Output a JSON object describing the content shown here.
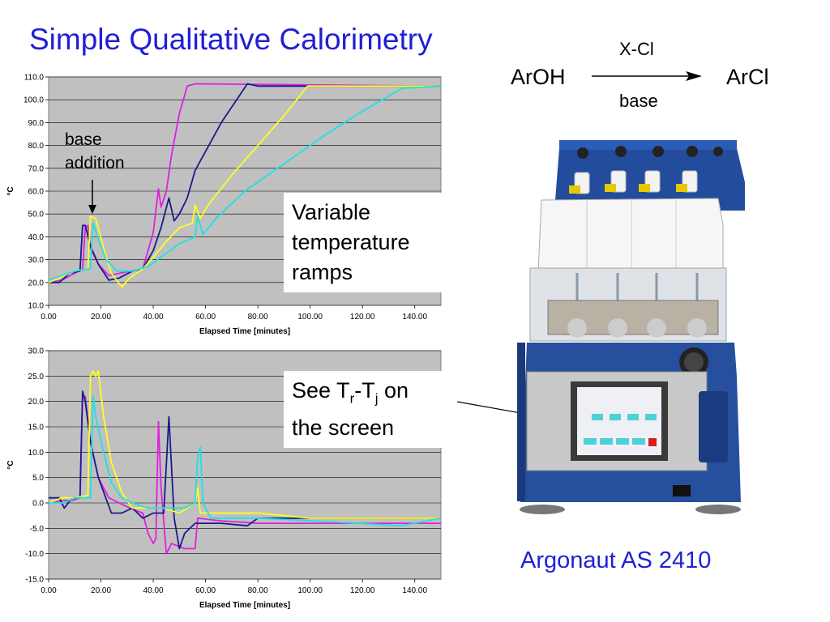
{
  "title": "Simple Qualitative Calorimetry",
  "reaction": {
    "reactant": "ArOH",
    "product": "ArCl",
    "reagent_above": "X-Cl",
    "reagent_below": "base"
  },
  "annotations": {
    "base_addition_line1": "base",
    "base_addition_line2": "addition",
    "ramps_line1": "Variable",
    "ramps_line2": "temperature",
    "ramps_line3": "ramps",
    "screen_prefix": "See T",
    "screen_sub1": "r",
    "screen_mid": "-T",
    "screen_sub2": "j",
    "screen_suffix": " on",
    "screen_line2": "the screen"
  },
  "caption": "Argonaut AS 2410",
  "colors": {
    "title": "#1f1fd6",
    "plot_bg": "#c0c0c0",
    "magenta": "#e020e0",
    "navy": "#1a1a8c",
    "yellow": "#ffff20",
    "cyan": "#20e0e0"
  },
  "chart_data": [
    {
      "type": "line",
      "xlabel": "Elapsed Time [minutes]",
      "ylabel": "°C",
      "xlim": [
        0,
        150
      ],
      "ylim": [
        10,
        110
      ],
      "x_ticks": [
        "0.00",
        "20.00",
        "40.00",
        "60.00",
        "80.00",
        "100.00",
        "120.00",
        "140.00"
      ],
      "y_ticks": [
        "10.0",
        "20.0",
        "30.0",
        "40.0",
        "50.0",
        "60.0",
        "70.0",
        "80.0",
        "90.0",
        "100.0",
        "110.0"
      ],
      "grid": true,
      "series": [
        {
          "color": "magenta",
          "points": [
            [
              0,
              20
            ],
            [
              5,
              21
            ],
            [
              10,
              24
            ],
            [
              13,
              26
            ],
            [
              14,
              44
            ],
            [
              15,
              45
            ],
            [
              16,
              35
            ],
            [
              19,
              28
            ],
            [
              23,
              23
            ],
            [
              27,
              24
            ],
            [
              31,
              25
            ],
            [
              36,
              26
            ],
            [
              40,
              42
            ],
            [
              42,
              61
            ],
            [
              43,
              53
            ],
            [
              45,
              60
            ],
            [
              47,
              76
            ],
            [
              50,
              94
            ],
            [
              53,
              106
            ],
            [
              56,
              107
            ],
            [
              150,
              106
            ]
          ]
        },
        {
          "color": "navy",
          "points": [
            [
              0,
              20
            ],
            [
              4,
              20
            ],
            [
              8,
              24
            ],
            [
              12,
              25
            ],
            [
              13,
              45
            ],
            [
              14,
              45
            ],
            [
              16,
              36
            ],
            [
              19,
              28
            ],
            [
              23,
              21
            ],
            [
              27,
              22
            ],
            [
              32,
              25
            ],
            [
              36,
              26
            ],
            [
              40,
              34
            ],
            [
              43,
              44
            ],
            [
              46,
              57
            ],
            [
              48,
              47
            ],
            [
              50,
              50
            ],
            [
              53,
              57
            ],
            [
              56,
              69
            ],
            [
              66,
              90
            ],
            [
              76,
              107
            ],
            [
              80,
              106
            ],
            [
              150,
              106
            ]
          ]
        },
        {
          "color": "yellow",
          "points": [
            [
              0,
              20
            ],
            [
              4,
              22
            ],
            [
              10,
              25
            ],
            [
              15,
              26
            ],
            [
              16,
              49
            ],
            [
              18,
              48
            ],
            [
              21,
              35
            ],
            [
              24,
              24
            ],
            [
              28,
              18
            ],
            [
              31,
              22
            ],
            [
              36,
              26
            ],
            [
              40,
              31
            ],
            [
              45,
              38
            ],
            [
              50,
              44
            ],
            [
              55,
              46
            ],
            [
              56,
              54
            ],
            [
              58,
              48
            ],
            [
              61,
              54
            ],
            [
              70,
              67
            ],
            [
              80,
              80
            ],
            [
              90,
              93
            ],
            [
              99,
              106
            ],
            [
              150,
              106
            ]
          ]
        },
        {
          "color": "cyan",
          "points": [
            [
              0,
              21
            ],
            [
              5,
              23
            ],
            [
              10,
              25
            ],
            [
              16,
              26
            ],
            [
              17,
              46
            ],
            [
              19,
              39
            ],
            [
              22,
              30
            ],
            [
              26,
              25
            ],
            [
              32,
              25
            ],
            [
              38,
              27
            ],
            [
              44,
              32
            ],
            [
              50,
              37
            ],
            [
              56,
              40
            ],
            [
              57,
              49
            ],
            [
              59,
              41
            ],
            [
              64,
              48
            ],
            [
              75,
              60
            ],
            [
              90,
              72
            ],
            [
              105,
              84
            ],
            [
              120,
              95
            ],
            [
              135,
              105
            ],
            [
              150,
              106
            ]
          ]
        }
      ]
    },
    {
      "type": "line",
      "xlabel": "Elapsed Time [minutes]",
      "ylabel": "°C",
      "xlim": [
        0,
        150
      ],
      "ylim": [
        -15,
        30
      ],
      "x_ticks": [
        "0.00",
        "20.00",
        "40.00",
        "60.00",
        "80.00",
        "100.00",
        "120.00",
        "140.00"
      ],
      "y_ticks": [
        "-15.0",
        "-10.0",
        "-5.0",
        "0.0",
        "5.0",
        "10.0",
        "15.0",
        "20.0",
        "25.0",
        "30.0"
      ],
      "grid": true,
      "series": [
        {
          "color": "magenta",
          "points": [
            [
              0,
              0
            ],
            [
              6,
              0.5
            ],
            [
              9,
              0.5
            ],
            [
              12,
              1
            ],
            [
              13,
              21
            ],
            [
              14,
              21
            ],
            [
              16,
              12
            ],
            [
              19,
              5
            ],
            [
              23,
              1
            ],
            [
              27,
              0
            ],
            [
              31,
              -1
            ],
            [
              36,
              -2
            ],
            [
              38,
              -6
            ],
            [
              40,
              -8
            ],
            [
              41,
              -7
            ],
            [
              42,
              16
            ],
            [
              43,
              3
            ],
            [
              45,
              -10
            ],
            [
              47,
              -8
            ],
            [
              52,
              -9
            ],
            [
              56,
              -9
            ],
            [
              57,
              -3
            ],
            [
              65,
              -3.5
            ],
            [
              80,
              -4
            ],
            [
              100,
              -4
            ],
            [
              150,
              -4
            ]
          ]
        },
        {
          "color": "navy",
          "points": [
            [
              0,
              1
            ],
            [
              4,
              1
            ],
            [
              6,
              -1
            ],
            [
              9,
              1
            ],
            [
              12,
              1
            ],
            [
              13,
              22
            ],
            [
              14,
              20
            ],
            [
              16,
              12
            ],
            [
              19,
              5
            ],
            [
              24,
              -2
            ],
            [
              28,
              -2
            ],
            [
              32,
              -1
            ],
            [
              36,
              -3
            ],
            [
              40,
              -2
            ],
            [
              44,
              -2
            ],
            [
              46,
              17
            ],
            [
              48,
              -3
            ],
            [
              50,
              -9
            ],
            [
              52,
              -6
            ],
            [
              56,
              -4
            ],
            [
              66,
              -4
            ],
            [
              76,
              -4.5
            ],
            [
              80,
              -3
            ],
            [
              100,
              -3
            ],
            [
              150,
              -3
            ]
          ]
        },
        {
          "color": "yellow",
          "points": [
            [
              0,
              0
            ],
            [
              5,
              1
            ],
            [
              10,
              1
            ],
            [
              15,
              1.5
            ],
            [
              16,
              25
            ],
            [
              17,
              26
            ],
            [
              18,
              25
            ],
            [
              19,
              26
            ],
            [
              21,
              17
            ],
            [
              24,
              8
            ],
            [
              28,
              2
            ],
            [
              32,
              -1
            ],
            [
              36,
              -1
            ],
            [
              44,
              -1
            ],
            [
              50,
              -2
            ],
            [
              56,
              0
            ],
            [
              57,
              3
            ],
            [
              58,
              -2
            ],
            [
              64,
              -2
            ],
            [
              80,
              -2
            ],
            [
              100,
              -3
            ],
            [
              150,
              -3
            ]
          ]
        },
        {
          "color": "cyan",
          "points": [
            [
              0,
              0
            ],
            [
              6,
              0
            ],
            [
              10,
              1
            ],
            [
              16,
              1
            ],
            [
              17,
              21
            ],
            [
              18,
              17
            ],
            [
              21,
              10
            ],
            [
              24,
              4
            ],
            [
              28,
              1
            ],
            [
              32,
              0
            ],
            [
              38,
              -1
            ],
            [
              45,
              -1
            ],
            [
              52,
              -1
            ],
            [
              56,
              0
            ],
            [
              57,
              9
            ],
            [
              58,
              11
            ],
            [
              59,
              0
            ],
            [
              62,
              -3
            ],
            [
              80,
              -3
            ],
            [
              100,
              -3.5
            ],
            [
              135,
              -4.5
            ],
            [
              150,
              -3
            ]
          ]
        }
      ]
    }
  ]
}
